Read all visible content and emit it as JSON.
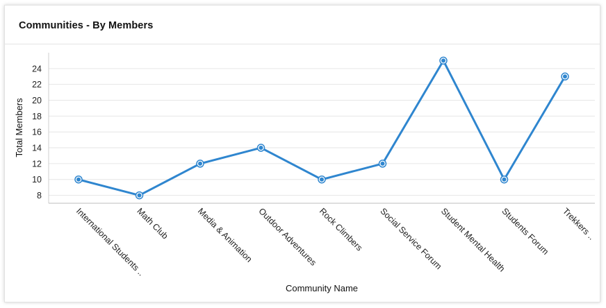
{
  "card": {
    "title": "Communities - By Members"
  },
  "chart_data": {
    "type": "line",
    "title": "Communities - By Members",
    "xlabel": "Community Name",
    "ylabel": "Total Members",
    "categories": [
      "International Students ..",
      "Math Club",
      "Media & Animation",
      "Outdoor Adventures",
      "Rock Climbers",
      "Social Service Forum",
      "Student Mental Health",
      "Students Forum",
      "Trekkers .."
    ],
    "series": [
      {
        "values": [
          10,
          8,
          12,
          14,
          10,
          12,
          25,
          10,
          23
        ]
      }
    ],
    "ylim": [
      7,
      26
    ],
    "yticks": [
      8,
      10,
      12,
      14,
      16,
      18,
      20,
      22,
      24
    ],
    "grid": true,
    "legend": "none",
    "color": "#2f86cf"
  }
}
